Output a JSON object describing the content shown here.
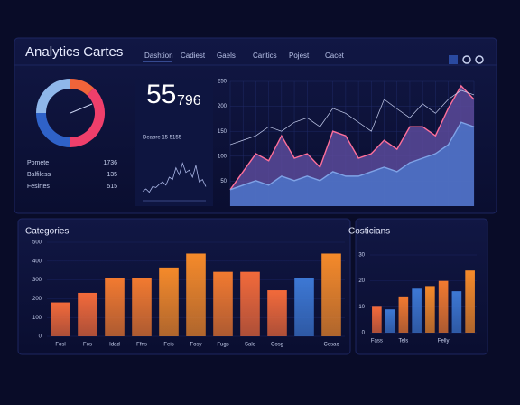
{
  "header": {
    "title": "Analytics Cartes",
    "nav": [
      "Dashtion",
      "Cadiest",
      "Gaels",
      "Caritics",
      "Pojest",
      "Cacet"
    ]
  },
  "kpi": {
    "big": "55",
    "small": "796",
    "caption": "Deabre 15 5155"
  },
  "metrics": [
    [
      "Pomete",
      "1736"
    ],
    [
      "Balfiless",
      "135"
    ],
    [
      "Fesirtes",
      "515"
    ]
  ],
  "chart_data": [
    {
      "type": "pie",
      "values": [
        12,
        38,
        25,
        25
      ],
      "colors": [
        "#f0643a",
        "#ef3f6b",
        "#2f62c8",
        "#8fb7ea"
      ]
    },
    {
      "type": "line",
      "x": [
        0,
        1,
        2,
        3,
        4,
        5,
        6,
        7,
        8,
        9,
        10,
        11,
        12,
        13,
        14,
        15,
        16,
        17,
        18,
        19
      ],
      "xlim": [
        0,
        19
      ],
      "ylim": [
        0,
        100
      ],
      "series": [
        {
          "color": "#aab6e6",
          "values": [
            20,
            25,
            18,
            30,
            28,
            35,
            40,
            33,
            50,
            45,
            70,
            55,
            80,
            60,
            65,
            50,
            75,
            40,
            45,
            30
          ]
        }
      ]
    },
    {
      "type": "area",
      "x": [
        0,
        1,
        2,
        3,
        4,
        5,
        6,
        7,
        8,
        9,
        10,
        11,
        12,
        13,
        14,
        15,
        16,
        17,
        18,
        19
      ],
      "xlim": [
        0,
        19
      ],
      "ylim": [
        0,
        250
      ],
      "yticks": [
        50,
        100,
        150,
        200,
        250
      ],
      "series": [
        {
          "color": "#ff6f9a",
          "fill": "#5a4a9a",
          "values": [
            33,
            69,
            105,
            91,
            141,
            96,
            105,
            78,
            150,
            141,
            96,
            105,
            132,
            114,
            159,
            159,
            141,
            196,
            241,
            214
          ]
        },
        {
          "color": "#7fa2e6",
          "fill": "#4c74c8",
          "values": [
            33,
            42,
            51,
            42,
            60,
            51,
            60,
            51,
            69,
            60,
            60,
            69,
            78,
            69,
            87,
            96,
            105,
            123,
            168,
            159
          ]
        },
        {
          "color": "#c8d0f0",
          "values": [
            123,
            132,
            141,
            159,
            150,
            168,
            177,
            159,
            196,
            186,
            168,
            150,
            214,
            195,
            177,
            205,
            186,
            214,
            232,
            223
          ]
        }
      ]
    },
    {
      "type": "bar",
      "title": "Categories",
      "ylim": [
        0,
        500
      ],
      "yticks": [
        0,
        100,
        200,
        300,
        400,
        500
      ],
      "categories": [
        "Fosl",
        "Fos",
        "Idad",
        "Ffns",
        "Feis",
        "Fosy",
        "Fugs",
        "Salo",
        "Cosg",
        null,
        "Cosac"
      ],
      "values": [
        180,
        231,
        310,
        310,
        366,
        440,
        343,
        343,
        245,
        310,
        440
      ],
      "colors": [
        "#f26a3a",
        "#f26a3a",
        "#f27a30",
        "#f27a30",
        "#f58a2a",
        "#f58a2a",
        "#f27a30",
        "#f26a3a",
        "#f26a3a",
        "#3d78d4",
        "#f58a2a"
      ]
    },
    {
      "type": "bar",
      "title": "Costicians",
      "ylim": [
        0,
        30
      ],
      "yticks": [
        0,
        10,
        20,
        30
      ],
      "categories": [
        "Fass",
        null,
        "Tels",
        null,
        null,
        "Felly",
        null,
        null
      ],
      "values": [
        10,
        9,
        14,
        17,
        18,
        20,
        16,
        24
      ],
      "colors": [
        "#f26a3a",
        "#3d78d4",
        "#f27a30",
        "#3d78d4",
        "#f58a2a",
        "#f27a30",
        "#3d78d4",
        "#f58a2a"
      ]
    }
  ]
}
